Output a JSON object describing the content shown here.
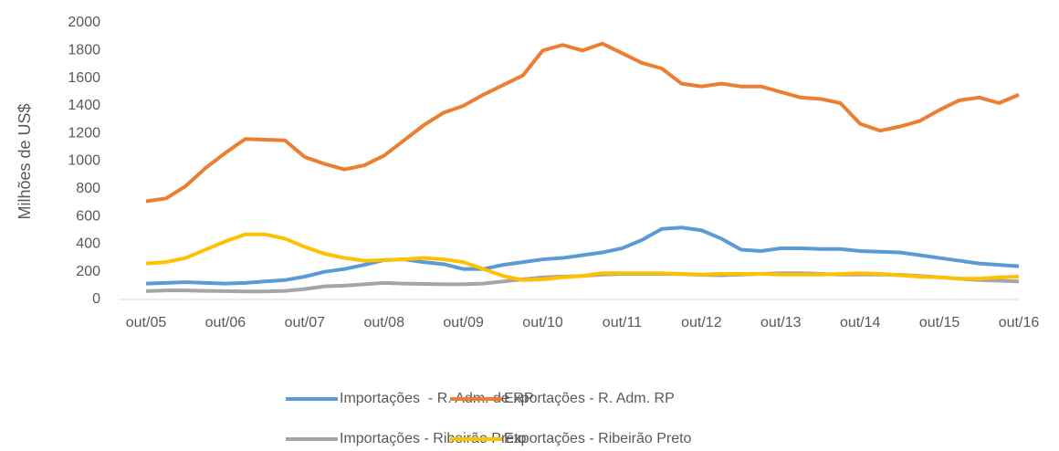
{
  "chart_data": {
    "type": "line",
    "y_label": "Milhões de US$",
    "categories": [
      "out/05",
      null,
      null,
      null,
      "out/06",
      null,
      null,
      null,
      "out/07",
      null,
      null,
      null,
      "out/08",
      null,
      null,
      null,
      "out/09",
      null,
      null,
      null,
      "out/10",
      null,
      null,
      null,
      "out/11",
      null,
      null,
      null,
      "out/12",
      null,
      null,
      null,
      "out/13",
      null,
      null,
      null,
      "out/14",
      null,
      null,
      null,
      "out/15",
      null,
      null,
      null,
      "out/16"
    ],
    "ylim": [
      0,
      2000
    ],
    "yticks": [
      0,
      200,
      400,
      600,
      800,
      1000,
      1200,
      1400,
      1600,
      1800,
      2000
    ],
    "grid": false,
    "legend": "bottom",
    "series": [
      {
        "name": "Importações  - R. Adm. de RP",
        "color": "#5b9bd5",
        "values": [
          115,
          120,
          125,
          120,
          115,
          120,
          130,
          140,
          165,
          200,
          220,
          250,
          285,
          290,
          270,
          255,
          220,
          220,
          250,
          270,
          290,
          300,
          320,
          340,
          370,
          430,
          510,
          520,
          500,
          440,
          360,
          350,
          370,
          370,
          365,
          365,
          350,
          345,
          340,
          320,
          300,
          280,
          260,
          250,
          240
        ]
      },
      {
        "name": "Exportações - R. Adm. RP",
        "color": "#ed7d31",
        "values": [
          710,
          730,
          820,
          950,
          1060,
          1160,
          1155,
          1150,
          1030,
          980,
          940,
          970,
          1040,
          1150,
          1260,
          1350,
          1400,
          1480,
          1550,
          1620,
          1800,
          1840,
          1800,
          1850,
          1780,
          1710,
          1670,
          1560,
          1540,
          1560,
          1540,
          1540,
          1500,
          1460,
          1450,
          1420,
          1270,
          1220,
          1250,
          1290,
          1370,
          1440,
          1460,
          1420,
          1480
        ]
      },
      {
        "name": "Importações - Ribeirão Preto",
        "color": "#a5a5a5",
        "values": [
          60,
          65,
          65,
          62,
          60,
          58,
          58,
          62,
          75,
          95,
          100,
          110,
          120,
          115,
          112,
          110,
          110,
          115,
          130,
          145,
          160,
          165,
          170,
          180,
          185,
          185,
          185,
          183,
          178,
          175,
          180,
          185,
          190,
          190,
          185,
          180,
          180,
          180,
          178,
          170,
          160,
          150,
          140,
          135,
          130
        ]
      },
      {
        "name": "Exportações - Ribeirão Preto",
        "color": "#ffc000",
        "values": [
          260,
          270,
          300,
          360,
          420,
          470,
          470,
          440,
          380,
          330,
          300,
          280,
          285,
          290,
          300,
          290,
          270,
          220,
          170,
          140,
          145,
          160,
          170,
          190,
          190,
          190,
          190,
          185,
          180,
          185,
          185,
          185,
          180,
          180,
          180,
          185,
          190,
          185,
          175,
          165,
          160,
          150,
          150,
          160,
          165
        ]
      }
    ]
  }
}
